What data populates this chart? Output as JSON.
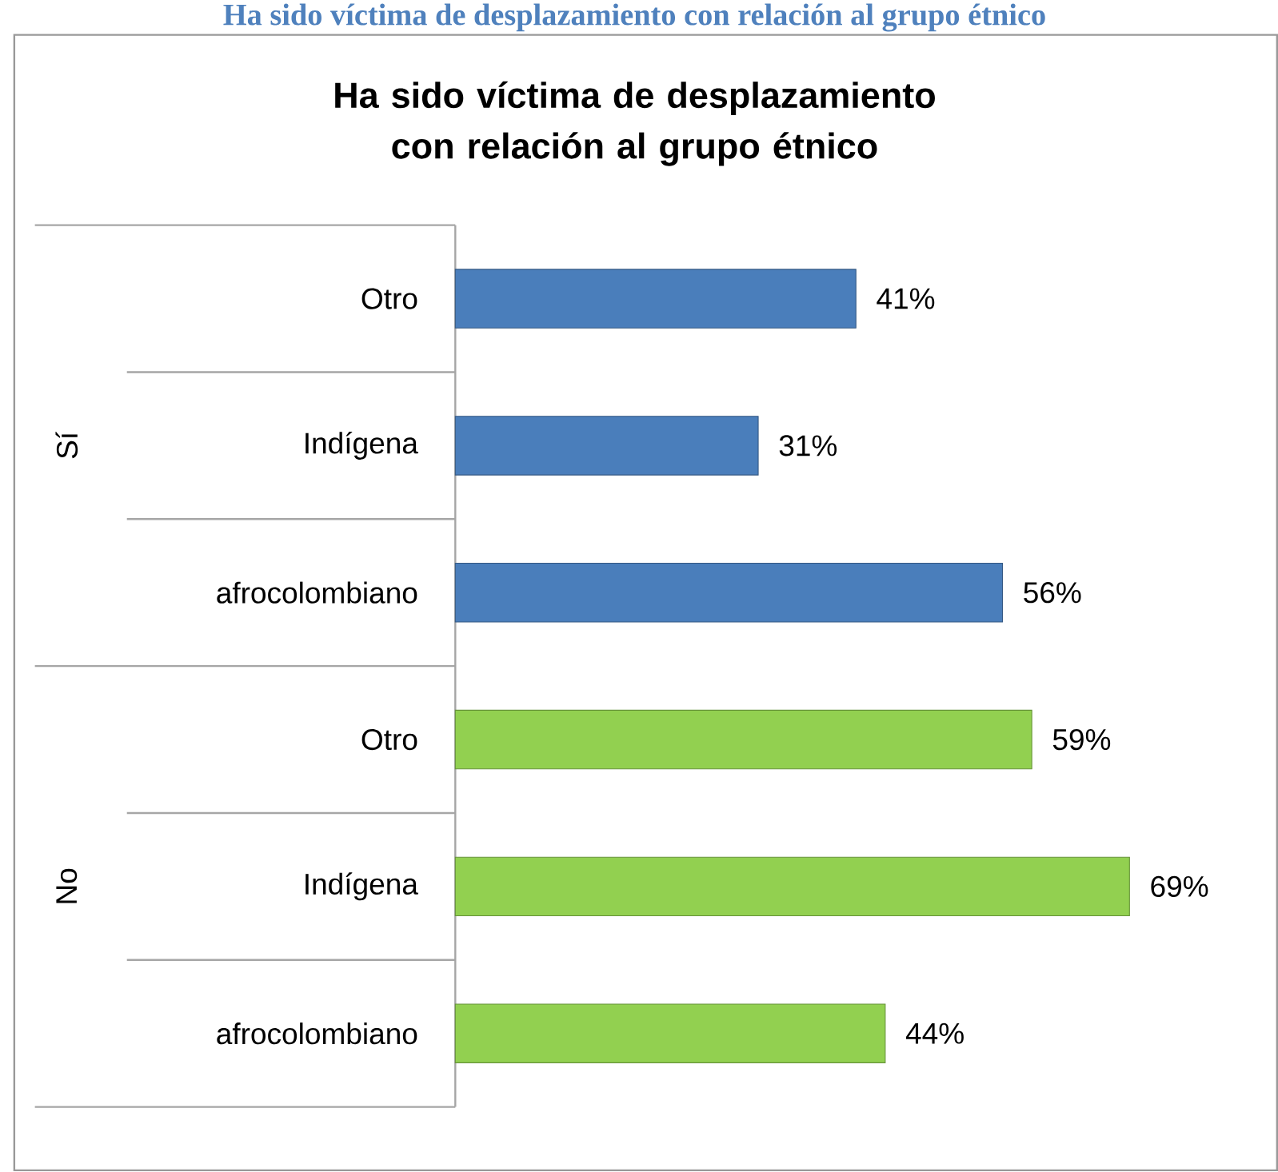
{
  "chart_data": {
    "type": "bar",
    "orientation": "horizontal",
    "title": "Ha sido víctima de desplazamiento con relación al grupo étnico",
    "categories": [
      "Otro",
      "Indígena",
      "afrocolombiano",
      "Otro",
      "Indígena",
      "afrocolombiano"
    ],
    "values": [
      41,
      31,
      56,
      59,
      69,
      44
    ],
    "value_labels": [
      "41%",
      "31%",
      "56%",
      "59%",
      "69%",
      "44%"
    ],
    "colors": [
      "#4a7ebb",
      "#4a7ebb",
      "#4a7ebb",
      "#92d050",
      "#92d050",
      "#92d050"
    ],
    "tick_labels": "y",
    "grid": false,
    "annotations": [
      "Ha sido víctima de desplazamiento con relación al grupo étnico",
      "Sí",
      "No"
    ]
  }
}
